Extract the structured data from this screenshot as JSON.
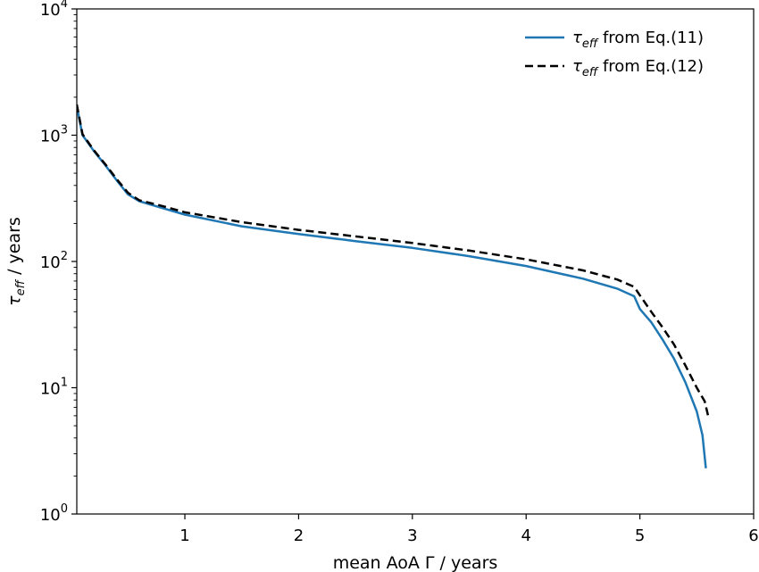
{
  "chart_data": {
    "type": "line",
    "title": "",
    "xlabel": "mean AoA Γ / years",
    "ylabel": "τ_eff / years",
    "ylabel_parts": {
      "symbol": "τ",
      "sub": "eff",
      "rest": " / years"
    },
    "xlim": [
      0.05,
      6.0
    ],
    "ylim": [
      1,
      10000
    ],
    "yscale": "log",
    "grid": false,
    "legend_position": "top-right",
    "x_ticks": [
      {
        "value": 1,
        "label": "1"
      },
      {
        "value": 2,
        "label": "2"
      },
      {
        "value": 3,
        "label": "3"
      },
      {
        "value": 4,
        "label": "4"
      },
      {
        "value": 5,
        "label": "5"
      },
      {
        "value": 6,
        "label": "6"
      }
    ],
    "y_ticks": [
      {
        "value": 1,
        "base": "10",
        "exp": "0"
      },
      {
        "value": 10,
        "base": "10",
        "exp": "1"
      },
      {
        "value": 100,
        "base": "10",
        "exp": "2"
      },
      {
        "value": 1000,
        "base": "10",
        "exp": "3"
      },
      {
        "value": 10000,
        "base": "10",
        "exp": "4"
      }
    ],
    "series": [
      {
        "name": "τ_eff from Eq.(11)",
        "label_parts": {
          "symbol": "τ",
          "sub": "eff",
          "rest": " from Eq.(11)"
        },
        "color": "#1f77b4",
        "style": "solid",
        "x": [
          0.05,
          0.1,
          0.2,
          0.3,
          0.4,
          0.5,
          0.6,
          0.8,
          1.0,
          1.5,
          2.0,
          2.5,
          3.0,
          3.5,
          4.0,
          4.5,
          4.8,
          4.95,
          5.0,
          5.1,
          5.2,
          5.3,
          5.4,
          5.5,
          5.55,
          5.58
        ],
        "y": [
          1700,
          1000,
          750,
          580,
          440,
          340,
          300,
          265,
          235,
          190,
          165,
          145,
          128,
          110,
          92,
          73,
          61,
          53,
          42,
          33,
          24,
          17,
          11,
          6.5,
          4.2,
          2.3
        ]
      },
      {
        "name": "τ_eff from Eq.(12)",
        "label_parts": {
          "symbol": "τ",
          "sub": "eff",
          "rest": " from Eq.(12)"
        },
        "color": "#000000",
        "style": "dashed",
        "x": [
          0.05,
          0.1,
          0.2,
          0.3,
          0.4,
          0.5,
          0.6,
          0.8,
          1.0,
          1.5,
          2.0,
          2.5,
          3.0,
          3.5,
          4.0,
          4.5,
          4.8,
          4.95,
          5.0,
          5.1,
          5.2,
          5.3,
          5.4,
          5.5,
          5.57,
          5.6
        ],
        "y": [
          1750,
          1020,
          760,
          590,
          450,
          350,
          305,
          275,
          245,
          205,
          178,
          158,
          140,
          122,
          104,
          85,
          72,
          63,
          54,
          40,
          30,
          22,
          15,
          10,
          7.8,
          6.0
        ]
      }
    ]
  }
}
